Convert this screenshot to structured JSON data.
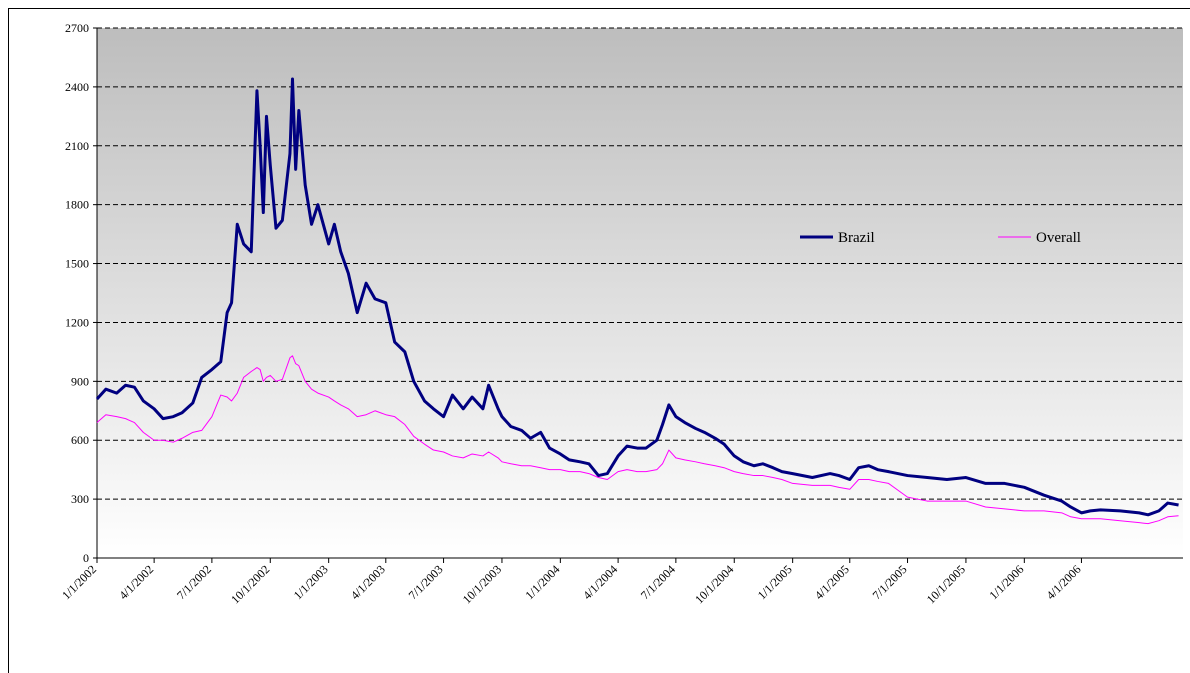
{
  "chart_data": {
    "type": "line",
    "x": [
      "1/1/2002",
      "1/15/2002",
      "2/1/2002",
      "2/15/2002",
      "3/1/2002",
      "3/15/2002",
      "4/1/2002",
      "4/15/2002",
      "5/1/2002",
      "5/15/2002",
      "6/1/2002",
      "6/15/2002",
      "7/1/2002",
      "7/15/2002",
      "7/25/2002",
      "8/1/2002",
      "8/10/2002",
      "8/20/2002",
      "9/1/2002",
      "9/10/2002",
      "9/15/2002",
      "9/20/2002",
      "9/25/2002",
      "10/1/2002",
      "10/10/2002",
      "10/20/2002",
      "11/1/2002",
      "11/5/2002",
      "11/10/2002",
      "11/15/2002",
      "11/25/2002",
      "12/5/2002",
      "12/15/2002",
      "1/1/2003",
      "1/10/2003",
      "1/20/2003",
      "2/1/2003",
      "2/15/2003",
      "3/1/2003",
      "3/15/2003",
      "4/1/2003",
      "4/15/2003",
      "5/1/2003",
      "5/15/2003",
      "6/1/2003",
      "6/15/2003",
      "7/1/2003",
      "7/15/2003",
      "8/1/2003",
      "8/15/2003",
      "9/1/2003",
      "9/10/2003",
      "9/25/2003",
      "10/1/2003",
      "10/15/2003",
      "11/1/2003",
      "11/15/2003",
      "12/1/2003",
      "12/15/2003",
      "1/1/2004",
      "1/15/2004",
      "2/1/2004",
      "2/15/2004",
      "3/1/2004",
      "3/15/2004",
      "4/1/2004",
      "4/15/2004",
      "5/1/2004",
      "5/15/2004",
      "6/1/2004",
      "6/10/2004",
      "6/20/2004",
      "7/1/2004",
      "7/15/2004",
      "8/1/2004",
      "8/15/2004",
      "9/1/2004",
      "9/15/2004",
      "10/1/2004",
      "10/15/2004",
      "11/1/2004",
      "11/15/2004",
      "12/1/2004",
      "12/15/2004",
      "1/1/2005",
      "2/1/2005",
      "3/1/2005",
      "3/15/2005",
      "4/1/2005",
      "4/15/2005",
      "5/1/2005",
      "5/15/2005",
      "6/1/2005",
      "7/1/2005",
      "8/1/2005",
      "9/1/2005",
      "10/1/2005",
      "11/1/2005",
      "12/1/2005",
      "1/1/2006",
      "2/1/2006",
      "3/1/2006",
      "3/15/2006",
      "4/1/2006",
      "4/15/2006",
      "5/1/2006",
      "6/1/2006",
      "7/1/2006",
      "7/15/2006",
      "8/1/2006",
      "8/15/2006",
      "9/1/2006"
    ],
    "series": [
      {
        "name": "Brazil",
        "color": "#000080",
        "values": [
          810,
          860,
          840,
          880,
          870,
          800,
          760,
          710,
          720,
          740,
          790,
          920,
          960,
          1000,
          1250,
          1300,
          1700,
          1600,
          1560,
          2380,
          2100,
          1760,
          2250,
          2000,
          1680,
          1720,
          2060,
          2440,
          1980,
          2280,
          1900,
          1700,
          1800,
          1600,
          1700,
          1560,
          1450,
          1250,
          1400,
          1320,
          1300,
          1100,
          1050,
          900,
          800,
          760,
          720,
          830,
          760,
          820,
          760,
          880,
          760,
          720,
          670,
          650,
          610,
          640,
          560,
          530,
          500,
          490,
          480,
          420,
          430,
          520,
          570,
          560,
          560,
          600,
          680,
          780,
          720,
          690,
          660,
          640,
          610,
          580,
          520,
          490,
          470,
          480,
          460,
          440,
          430,
          410,
          430,
          420,
          400,
          460,
          470,
          450,
          440,
          420,
          410,
          400,
          410,
          380,
          380,
          360,
          320,
          290,
          260,
          230,
          240,
          245,
          240,
          230,
          220,
          240,
          280,
          270
        ]
      },
      {
        "name": "Overall",
        "color": "#ff00ff",
        "values": [
          690,
          730,
          720,
          710,
          690,
          640,
          600,
          600,
          590,
          610,
          640,
          650,
          720,
          830,
          820,
          800,
          840,
          920,
          950,
          970,
          960,
          900,
          920,
          930,
          900,
          910,
          1020,
          1030,
          990,
          980,
          900,
          860,
          840,
          820,
          800,
          780,
          760,
          720,
          730,
          750,
          730,
          720,
          680,
          620,
          580,
          550,
          540,
          520,
          510,
          530,
          520,
          540,
          510,
          490,
          480,
          470,
          470,
          460,
          450,
          450,
          440,
          440,
          430,
          410,
          400,
          440,
          450,
          440,
          440,
          450,
          480,
          550,
          510,
          500,
          490,
          480,
          470,
          460,
          440,
          430,
          420,
          420,
          410,
          400,
          380,
          370,
          370,
          360,
          350,
          400,
          400,
          390,
          380,
          310,
          290,
          290,
          290,
          260,
          250,
          240,
          240,
          230,
          210,
          200,
          200,
          200,
          190,
          180,
          175,
          190,
          210,
          215
        ]
      }
    ],
    "xlim": [
      "1/1/2002",
      "9/8/2006"
    ],
    "xticks": [
      "1/1/2002",
      "4/1/2002",
      "7/1/2002",
      "10/1/2002",
      "1/1/2003",
      "4/1/2003",
      "7/1/2003",
      "10/1/2003",
      "1/1/2004",
      "4/1/2004",
      "7/1/2004",
      "10/1/2004",
      "1/1/2005",
      "4/1/2005",
      "7/1/2005",
      "10/1/2005",
      "1/1/2006",
      "4/1/2006"
    ],
    "ylim": [
      0,
      2700
    ],
    "yticks": [
      0,
      300,
      600,
      900,
      1200,
      1500,
      1800,
      2100,
      2400,
      2700
    ],
    "grid": true,
    "legend": "right"
  }
}
